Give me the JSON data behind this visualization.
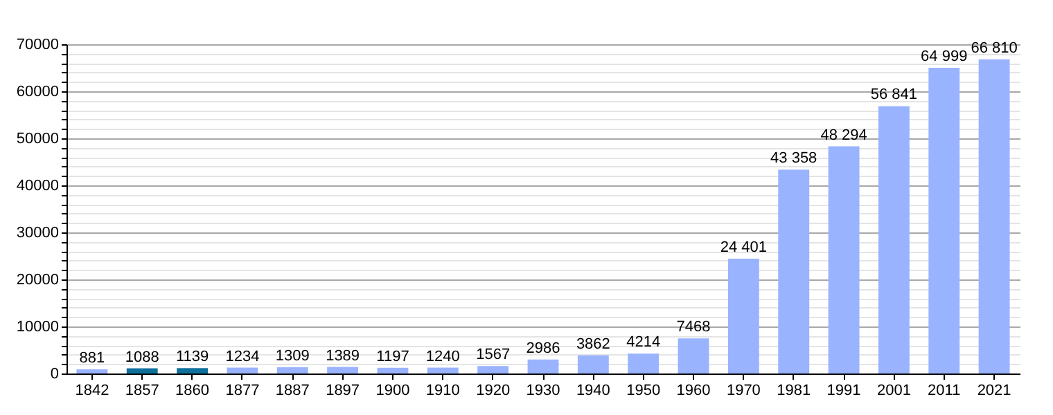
{
  "chart_data": {
    "type": "bar",
    "categories": [
      "1842",
      "1857",
      "1860",
      "1877",
      "1887",
      "1897",
      "1900",
      "1910",
      "1920",
      "1930",
      "1940",
      "1950",
      "1960",
      "1970",
      "1981",
      "1991",
      "2001",
      "2011",
      "2021"
    ],
    "values": [
      881,
      1088,
      1139,
      1234,
      1309,
      1389,
      1197,
      1240,
      1567,
      2986,
      3862,
      4214,
      7468,
      24401,
      43358,
      48294,
      56841,
      64999,
      66810
    ],
    "colors": [
      "#99b3ff",
      "#10709c",
      "#10709c",
      "#99b3ff",
      "#99b3ff",
      "#99b3ff",
      "#99b3ff",
      "#99b3ff",
      "#99b3ff",
      "#99b3ff",
      "#99b3ff",
      "#99b3ff",
      "#99b3ff",
      "#99b3ff",
      "#99b3ff",
      "#99b3ff",
      "#99b3ff",
      "#99b3ff",
      "#99b3ff"
    ],
    "value_labels": [
      "881",
      "1088",
      "1139",
      "1234",
      "1309",
      "1389",
      "1197",
      "1240",
      "1567",
      "2986",
      "3862",
      "4214",
      "7468",
      "24 401",
      "43 358",
      "48 294",
      "56 841",
      "64 999",
      "66 810"
    ],
    "ylim": [
      0,
      70000
    ],
    "yticks": [
      0,
      {
        "value": 2000,
        "label": null
      },
      {
        "value": 4000,
        "label": null
      },
      {
        "value": 6000,
        "label": null
      },
      {
        "value": 8000,
        "label": null
      },
      10000,
      {
        "value": 12000,
        "label": null
      },
      {
        "value": 14000,
        "label": null
      },
      {
        "value": 16000,
        "label": null
      },
      {
        "value": 18000,
        "label": null
      },
      20000,
      {
        "value": 22000,
        "label": null
      },
      {
        "value": 24000,
        "label": null
      },
      {
        "value": 26000,
        "label": null
      },
      {
        "value": 28000,
        "label": null
      },
      30000,
      {
        "value": 32000,
        "label": null
      },
      {
        "value": 34000,
        "label": null
      },
      {
        "value": 36000,
        "label": null
      },
      {
        "value": 38000,
        "label": null
      },
      40000,
      {
        "value": 42000,
        "label": null
      },
      {
        "value": 44000,
        "label": null
      },
      {
        "value": 46000,
        "label": null
      },
      {
        "value": 48000,
        "label": null
      },
      50000,
      {
        "value": 52000,
        "label": null
      },
      {
        "value": 54000,
        "label": null
      },
      {
        "value": 56000,
        "label": null
      },
      {
        "value": 58000,
        "label": null
      },
      60000,
      {
        "value": 62000,
        "label": null
      },
      {
        "value": 64000,
        "label": null
      },
      {
        "value": 66000,
        "label": null
      },
      {
        "value": 68000,
        "label": null
      },
      70000
    ],
    "grid": true
  }
}
